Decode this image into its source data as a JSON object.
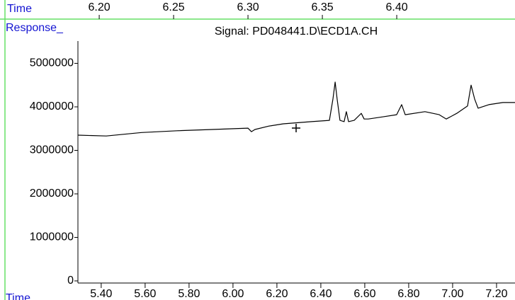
{
  "chart_data": {
    "type": "line",
    "title": "Signal: PD048441.D\\ECD1A.CH",
    "x_label": "Time",
    "y_label": "Response_",
    "color": "#000000",
    "top_axis": {
      "label": "Time",
      "xlim": [
        6.1333,
        6.4795
      ],
      "xticks": [
        {
          "value": 6.2,
          "label": "6.20"
        },
        {
          "value": 6.25,
          "label": "6.25"
        },
        {
          "value": 6.3,
          "label": "6.30"
        },
        {
          "value": 6.35,
          "label": "6.35"
        },
        {
          "value": 6.4,
          "label": "6.40"
        }
      ]
    },
    "xlim": [
      5.294,
      7.284
    ],
    "xticks": [
      {
        "value": 5.4,
        "label": "5.40"
      },
      {
        "value": 5.6,
        "label": "5.60"
      },
      {
        "value": 5.8,
        "label": "5.80"
      },
      {
        "value": 6.0,
        "label": "6.00"
      },
      {
        "value": 6.2,
        "label": "6.20"
      },
      {
        "value": 6.4,
        "label": "6.40"
      },
      {
        "value": 6.6,
        "label": "6.60"
      },
      {
        "value": 6.8,
        "label": "6.80"
      },
      {
        "value": 7.0,
        "label": "7.00"
      },
      {
        "value": 7.2,
        "label": "7.20"
      }
    ],
    "ylim": [
      0,
      5480000
    ],
    "yticks": [
      0,
      1000000,
      2000000,
      3000000,
      4000000,
      5000000
    ],
    "x": [
      5.294,
      5.423,
      5.584,
      5.745,
      5.906,
      6.068,
      6.084,
      6.1,
      6.165,
      6.229,
      6.358,
      6.439,
      6.455,
      6.465,
      6.474,
      6.487,
      6.506,
      6.516,
      6.526,
      6.552,
      6.584,
      6.597,
      6.616,
      6.681,
      6.745,
      6.768,
      6.784,
      6.874,
      6.939,
      6.971,
      7.019,
      7.068,
      7.084,
      7.1,
      7.116,
      7.165,
      7.229,
      7.284
    ],
    "values": [
      3350000,
      3330000,
      3410000,
      3450000,
      3480000,
      3510000,
      3430000,
      3480000,
      3560000,
      3610000,
      3660000,
      3690000,
      4180000,
      4570000,
      4180000,
      3690000,
      3660000,
      3890000,
      3660000,
      3690000,
      3850000,
      3720000,
      3720000,
      3770000,
      3820000,
      4050000,
      3820000,
      3890000,
      3820000,
      3720000,
      3850000,
      4020000,
      4500000,
      4180000,
      3970000,
      4050000,
      4100000,
      4100000
    ]
  }
}
